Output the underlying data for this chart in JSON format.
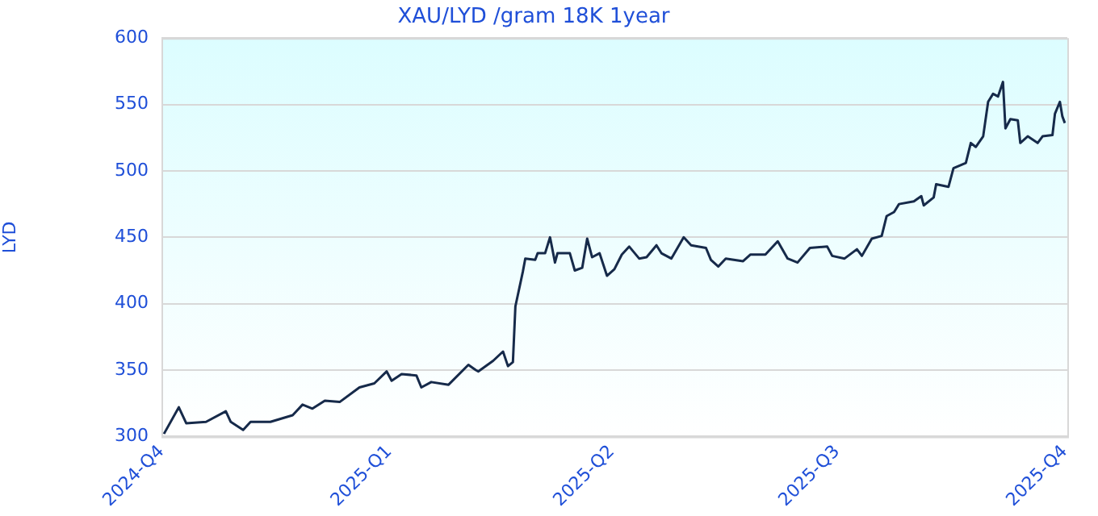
{
  "chart_data": {
    "type": "line",
    "title": "XAU/LYD /gram 18K 1year",
    "ylabel": "LYD",
    "x": [
      "2024-10-02",
      "2024-10-08",
      "2024-10-11",
      "2024-10-19",
      "2024-10-27",
      "2024-10-29",
      "2024-11-03",
      "2024-11-06",
      "2024-11-14",
      "2024-11-23",
      "2024-11-27",
      "2024-12-01",
      "2024-12-06",
      "2024-12-12",
      "2024-12-20",
      "2024-12-26",
      "2024-12-31",
      "2025-01-02",
      "2025-01-06",
      "2025-01-12",
      "2025-01-14",
      "2025-01-18",
      "2025-01-25",
      "2025-02-02",
      "2025-02-05",
      "2025-02-06",
      "2025-02-12",
      "2025-02-16",
      "2025-02-18",
      "2025-02-20",
      "2025-02-21",
      "2025-02-24",
      "2025-02-25",
      "2025-03-01",
      "2025-03-02",
      "2025-03-05",
      "2025-03-07",
      "2025-03-09",
      "2025-03-10",
      "2025-03-15",
      "2025-03-17",
      "2025-03-20",
      "2025-03-22",
      "2025-03-24",
      "2025-03-27",
      "2025-03-30",
      "2025-04-02",
      "2025-04-05",
      "2025-04-08",
      "2025-04-12",
      "2025-04-15",
      "2025-04-19",
      "2025-04-21",
      "2025-04-25",
      "2025-04-30",
      "2025-05-03",
      "2025-05-09",
      "2025-05-11",
      "2025-05-14",
      "2025-05-17",
      "2025-05-24",
      "2025-05-27",
      "2025-06-02",
      "2025-06-07",
      "2025-06-11",
      "2025-06-15",
      "2025-06-20",
      "2025-06-27",
      "2025-06-29",
      "2025-07-04",
      "2025-07-09",
      "2025-07-11",
      "2025-07-15",
      "2025-07-19",
      "2025-07-21",
      "2025-07-24",
      "2025-07-26",
      "2025-08-01",
      "2025-08-04",
      "2025-08-05",
      "2025-08-09",
      "2025-08-10",
      "2025-08-15",
      "2025-08-17",
      "2025-08-22",
      "2025-08-24",
      "2025-08-26",
      "2025-08-29",
      "2025-08-31",
      "2025-09-02",
      "2025-09-04",
      "2025-09-06",
      "2025-09-07",
      "2025-09-09",
      "2025-09-12",
      "2025-09-13",
      "2025-09-16",
      "2025-09-20",
      "2025-09-22",
      "2025-09-26",
      "2025-09-27",
      "2025-09-29",
      "2025-09-30",
      "2025-10-01"
    ],
    "series": [
      {
        "color": "#162a4a",
        "values": [
          302,
          322,
          310,
          311,
          319,
          311,
          305,
          311,
          311,
          316,
          324,
          321,
          327,
          326,
          337,
          340,
          349,
          342,
          347,
          346,
          337,
          341,
          339,
          354,
          350,
          349,
          357,
          364,
          353,
          356,
          398,
          424,
          434,
          433,
          438,
          438,
          450,
          431,
          438,
          438,
          425,
          427,
          449,
          435,
          438,
          421,
          426,
          437,
          443,
          434,
          435,
          444,
          438,
          434,
          450,
          444,
          442,
          433,
          428,
          434,
          432,
          437,
          437,
          447,
          434,
          431,
          442,
          443,
          436,
          434,
          441,
          436,
          449,
          451,
          466,
          469,
          475,
          477,
          481,
          474,
          480,
          490,
          488,
          502,
          506,
          521,
          518,
          526,
          552,
          558,
          556,
          567,
          532,
          539,
          538,
          521,
          526,
          521,
          526,
          527,
          543,
          552,
          541,
          536
        ]
      }
    ],
    "xlim": [
      "2024-10-01",
      "2025-10-02"
    ],
    "xticks": [
      {
        "value": "2024-10-01",
        "label": "2024-Q4"
      },
      {
        "value": "2025-01-01",
        "label": "2025-Q1"
      },
      {
        "value": "2025-04-01",
        "label": "2025-Q2"
      },
      {
        "value": "2025-07-01",
        "label": "2025-Q3"
      },
      {
        "value": "2025-10-01",
        "label": "2025-Q4"
      }
    ],
    "ylim": [
      300,
      600
    ],
    "yticks": [
      300,
      350,
      400,
      450,
      500,
      550,
      600
    ],
    "grid": "y",
    "legend": false,
    "marker": "none",
    "line_style": "solid"
  }
}
